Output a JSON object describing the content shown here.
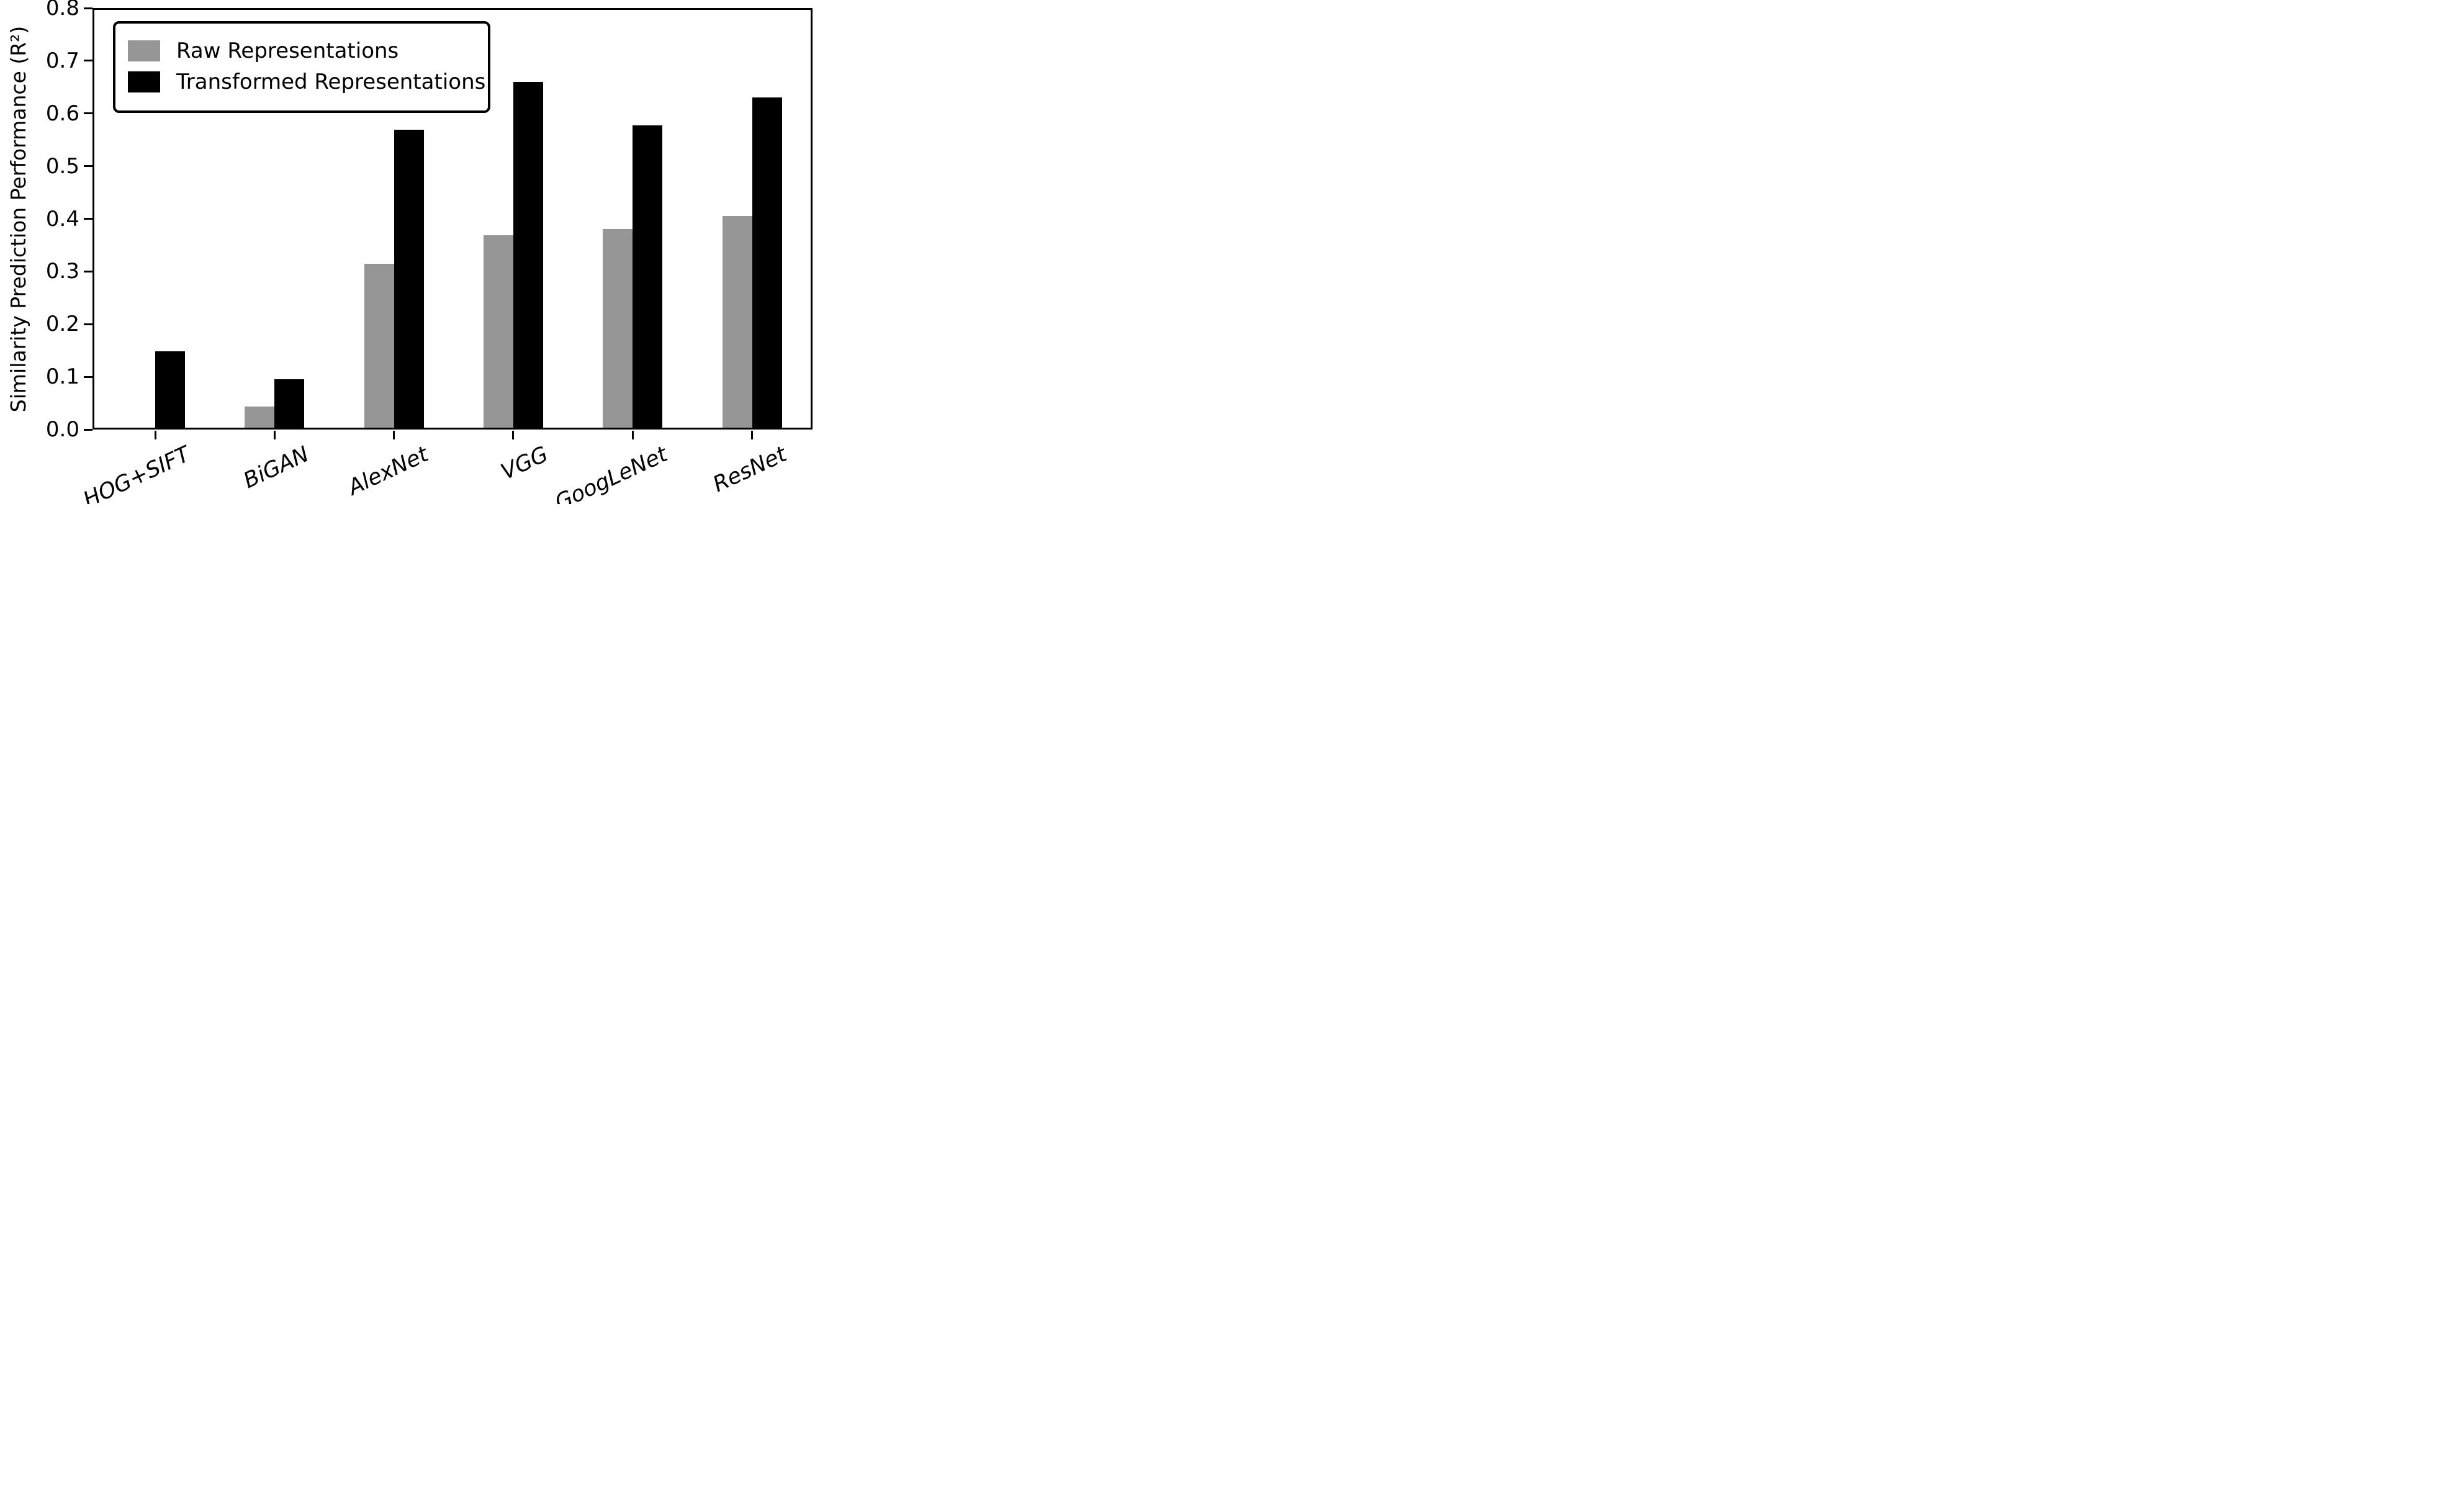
{
  "chart_data": {
    "type": "bar",
    "title": "",
    "xlabel": "",
    "ylabel": "Similarity Prediction Performance (R²)",
    "categories": [
      "HOG+SIFT",
      "BiGAN",
      "AlexNet",
      "VGG",
      "GoogLeNet",
      "ResNet"
    ],
    "series": [
      {
        "name": "Raw Representations",
        "color": "#969696",
        "values": [
          0.0,
          0.04,
          0.311,
          0.365,
          0.377,
          0.402
        ]
      },
      {
        "name": "Transformed Representations",
        "color": "#000000",
        "values": [
          0.145,
          0.092,
          0.566,
          0.656,
          0.574,
          0.627
        ]
      }
    ],
    "ylim": [
      0.0,
      0.8
    ],
    "yticks": [
      "0.0",
      "0.1",
      "0.2",
      "0.3",
      "0.4",
      "0.5",
      "0.6",
      "0.7",
      "0.8"
    ],
    "grid": false,
    "legend_position": "upper left",
    "bar_group_layout": "grouped-pair-centered-on-tick"
  }
}
